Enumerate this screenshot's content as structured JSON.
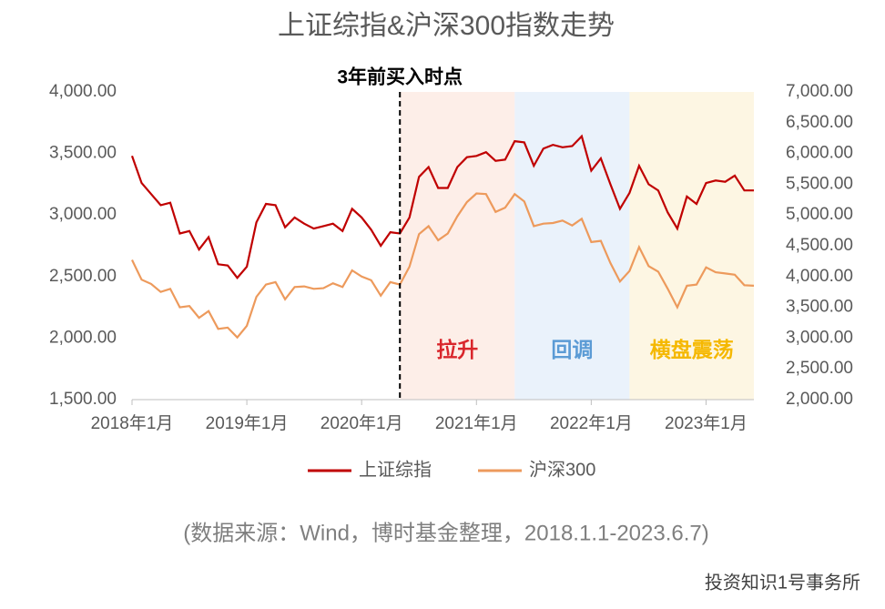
{
  "chart_data": {
    "type": "line",
    "title": "上证综指&沪深300指数走势",
    "source": "(数据来源：Wind，博时基金整理，2018.1.1-2023.6.7)",
    "watermark": "投资知识1号事务所",
    "x": [
      "2018-01",
      "2018-02",
      "2018-03",
      "2018-04",
      "2018-05",
      "2018-06",
      "2018-07",
      "2018-08",
      "2018-09",
      "2018-10",
      "2018-11",
      "2018-12",
      "2019-01",
      "2019-02",
      "2019-03",
      "2019-04",
      "2019-05",
      "2019-06",
      "2019-07",
      "2019-08",
      "2019-09",
      "2019-10",
      "2019-11",
      "2019-12",
      "2020-01",
      "2020-02",
      "2020-03",
      "2020-04",
      "2020-05",
      "2020-06",
      "2020-07",
      "2020-08",
      "2020-09",
      "2020-10",
      "2020-11",
      "2020-12",
      "2021-01",
      "2021-02",
      "2021-03",
      "2021-04",
      "2021-05",
      "2021-06",
      "2021-07",
      "2021-08",
      "2021-09",
      "2021-10",
      "2021-11",
      "2021-12",
      "2022-01",
      "2022-02",
      "2022-03",
      "2022-04",
      "2022-05",
      "2022-06",
      "2022-07",
      "2022-08",
      "2022-09",
      "2022-10",
      "2022-11",
      "2022-12",
      "2023-01",
      "2023-02",
      "2023-03",
      "2023-04",
      "2023-05",
      "2023-06"
    ],
    "xlim": [
      "2018-01",
      "2023-06"
    ],
    "xticks": [
      {
        "value": "2018-01",
        "label": "2018年1月"
      },
      {
        "value": "2019-01",
        "label": "2019年1月"
      },
      {
        "value": "2020-01",
        "label": "2020年1月"
      },
      {
        "value": "2021-01",
        "label": "2021年1月"
      },
      {
        "value": "2022-01",
        "label": "2022年1月"
      },
      {
        "value": "2023-01",
        "label": "2023年1月"
      }
    ],
    "ylim": [
      1500,
      4000
    ],
    "yticks": [
      {
        "value": 1500,
        "label": "1,500.00"
      },
      {
        "value": 2000,
        "label": "2,000.00"
      },
      {
        "value": 2500,
        "label": "2,500.00"
      },
      {
        "value": 3000,
        "label": "3,000.00"
      },
      {
        "value": 3500,
        "label": "3,500.00"
      },
      {
        "value": 4000,
        "label": "4,000.00"
      }
    ],
    "y2lim": [
      2000,
      7000
    ],
    "y2ticks": [
      {
        "value": 2000,
        "label": "2,000.00"
      },
      {
        "value": 2500,
        "label": "2,500.00"
      },
      {
        "value": 3000,
        "label": "3,000.00"
      },
      {
        "value": 3500,
        "label": "3,500.00"
      },
      {
        "value": 4000,
        "label": "4,000.00"
      },
      {
        "value": 4500,
        "label": "4,500.00"
      },
      {
        "value": 5000,
        "label": "5,000.00"
      },
      {
        "value": 5500,
        "label": "5,500.00"
      },
      {
        "value": 6000,
        "label": "6,000.00"
      },
      {
        "value": 6500,
        "label": "6,500.00"
      },
      {
        "value": 7000,
        "label": "7,000.00"
      }
    ],
    "series": [
      {
        "name": "上证综指",
        "color": "#c00000",
        "axis": "y",
        "values": [
          3480,
          3260,
          3170,
          3080,
          3100,
          2850,
          2870,
          2720,
          2820,
          2600,
          2590,
          2490,
          2580,
          2940,
          3090,
          3080,
          2900,
          2980,
          2930,
          2890,
          2910,
          2930,
          2870,
          3050,
          2980,
          2880,
          2750,
          2860,
          2850,
          2980,
          3310,
          3390,
          3220,
          3220,
          3390,
          3470,
          3480,
          3510,
          3440,
          3450,
          3600,
          3590,
          3400,
          3540,
          3570,
          3550,
          3560,
          3640,
          3360,
          3460,
          3250,
          3050,
          3180,
          3400,
          3250,
          3200,
          3020,
          2890,
          3150,
          3090,
          3260,
          3280,
          3270,
          3320,
          3200,
          3200
        ]
      },
      {
        "name": "沪深300",
        "color": "#ed9a5c",
        "axis": "y2",
        "values": [
          4270,
          3950,
          3880,
          3750,
          3800,
          3500,
          3520,
          3330,
          3440,
          3150,
          3170,
          3010,
          3200,
          3670,
          3870,
          3910,
          3630,
          3830,
          3840,
          3800,
          3810,
          3890,
          3830,
          4100,
          4000,
          3940,
          3690,
          3910,
          3870,
          4160,
          4690,
          4820,
          4590,
          4700,
          4980,
          5210,
          5350,
          5340,
          5050,
          5120,
          5340,
          5220,
          4820,
          4860,
          4870,
          4910,
          4830,
          4940,
          4560,
          4580,
          4220,
          3920,
          4090,
          4480,
          4170,
          4080,
          3800,
          3500,
          3850,
          3870,
          4150,
          4070,
          4050,
          4030,
          3860,
          3850
        ]
      }
    ],
    "marker": {
      "x": "2020-05",
      "label": "3年前买入时点"
    },
    "regions": [
      {
        "start": "2020-05",
        "end": "2021-05",
        "label": "拉升",
        "color": "#fdeee8",
        "label_color": "#d9262c"
      },
      {
        "start": "2021-05",
        "end": "2022-05",
        "label": "回调",
        "color": "#eaf2fb",
        "label_color": "#5b9bd5"
      },
      {
        "start": "2022-05",
        "end": "2023-06",
        "label": "横盘震荡",
        "color": "#fdf6e3",
        "label_color": "#f5b800"
      }
    ]
  }
}
